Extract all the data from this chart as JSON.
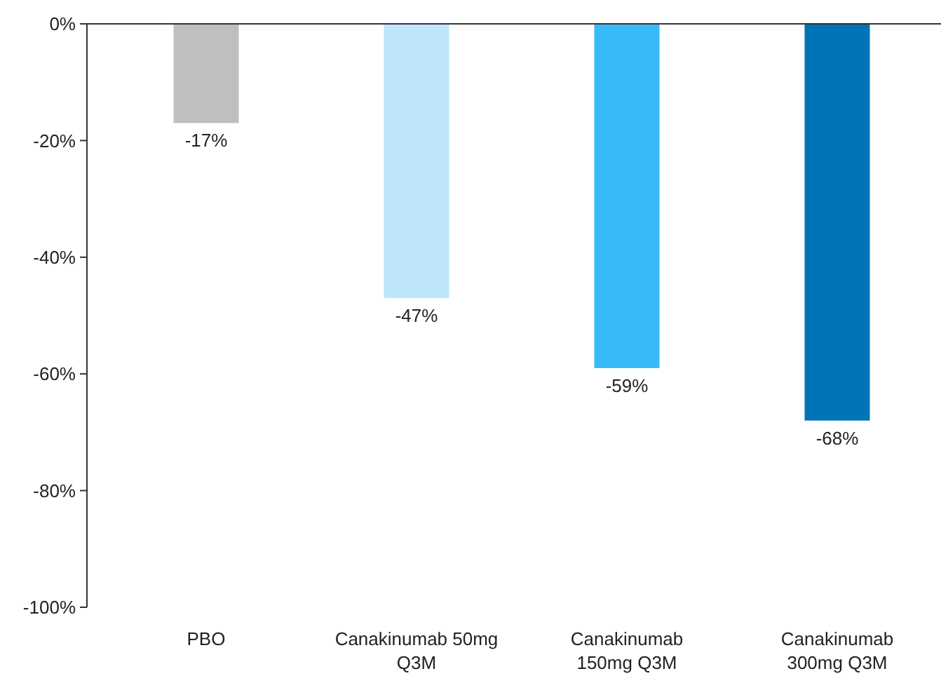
{
  "chart_data": {
    "type": "bar",
    "categories": [
      "PBO",
      "Canakinumab 50mg Q3M",
      "Canakinumab 150mg Q3M",
      "Canakinumab 300mg Q3M"
    ],
    "values": [
      -17,
      -47,
      -59,
      -68
    ],
    "colors": [
      "#bfbfbf",
      "#bde6fc",
      "#38b9f8",
      "#0173b8"
    ],
    "value_labels": [
      "-17%",
      "-47%",
      "-59%",
      "-68%"
    ],
    "ylim": [
      -100,
      0
    ],
    "yticks": [
      {
        "value": 0,
        "label": "0%"
      },
      {
        "value": -20,
        "label": "-20%"
      },
      {
        "value": -40,
        "label": "-40%"
      },
      {
        "value": -60,
        "label": "-60%"
      },
      {
        "value": -80,
        "label": "-80%"
      },
      {
        "value": -100,
        "label": "-100%"
      }
    ],
    "grid": false
  }
}
